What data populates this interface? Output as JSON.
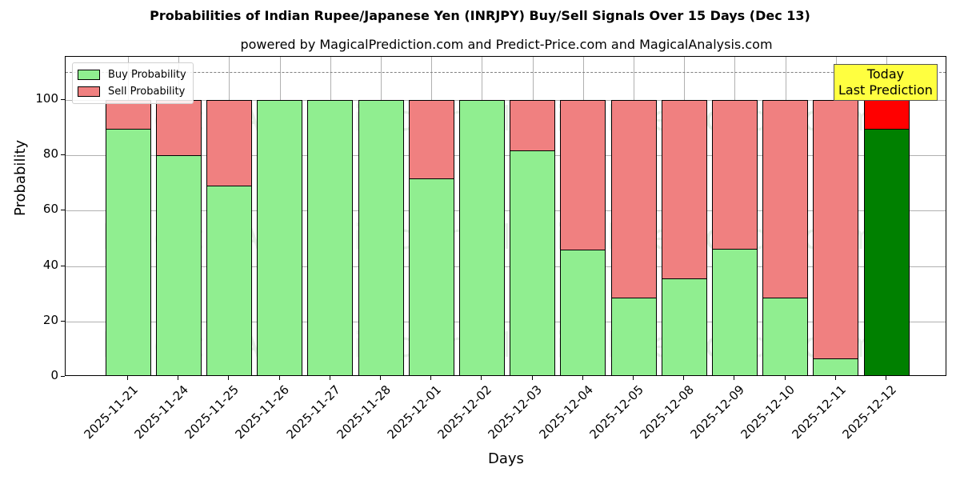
{
  "chart_data": {
    "type": "bar",
    "stacked": true,
    "title": "Probabilities of Indian Rupee/Japanese Yen (INRJPY) Buy/Sell Signals Over 15 Days (Dec 13)",
    "subtitle": "powered by MagicalPrediction.com and Predict-Price.com and MagicalAnalysis.com",
    "xlabel": "Days",
    "ylabel": "Probability",
    "ylim": [
      0,
      115
    ],
    "yticks": [
      0,
      20,
      40,
      60,
      80,
      100
    ],
    "grid": true,
    "reference_line": {
      "y": 110,
      "style": "dashed",
      "color": "#808080"
    },
    "legend": {
      "position": "upper left",
      "entries": [
        "Buy Probability",
        "Sell Probability"
      ]
    },
    "categories": [
      "2025-11-21",
      "2025-11-24",
      "2025-11-25",
      "2025-11-26",
      "2025-11-27",
      "2025-11-28",
      "2025-12-01",
      "2025-12-02",
      "2025-12-03",
      "2025-12-04",
      "2025-12-05",
      "2025-12-08",
      "2025-12-09",
      "2025-12-10",
      "2025-12-11",
      "2025-12-12"
    ],
    "series": [
      {
        "name": "Buy Probability",
        "color": "#90ee90",
        "values": [
          89.6,
          80.3,
          69.1,
          100,
          100,
          100,
          71.7,
          100,
          81.8,
          46.0,
          28.9,
          35.8,
          46.5,
          28.9,
          6.9,
          89.6
        ]
      },
      {
        "name": "Sell Probability",
        "color": "#f08080",
        "values": [
          10.4,
          19.7,
          30.9,
          0,
          0,
          0,
          28.3,
          0,
          18.2,
          54.0,
          71.1,
          64.2,
          53.5,
          71.1,
          93.1,
          10.4
        ]
      }
    ],
    "highlight": {
      "category": "2025-12-12",
      "buy_color": "#008000",
      "sell_color": "#ff0000",
      "annotation": "Today\nLast Prediction",
      "annotation_bg": "#ffff40"
    },
    "watermarks": [
      "MagicalAnalysis.com",
      "MagicalPrediction.com"
    ]
  },
  "labels": {
    "title": "Probabilities of Indian Rupee/Japanese Yen (INRJPY) Buy/Sell Signals Over 15 Days (Dec 13)",
    "subtitle": "powered by MagicalPrediction.com and Predict-Price.com and MagicalAnalysis.com",
    "xlabel": "Days",
    "ylabel": "Probability",
    "legend_buy": "Buy Probability",
    "legend_sell": "Sell Probability",
    "today_line1": "Today",
    "today_line2": "Last Prediction",
    "watermark_left": "MagicalAnalysis.com",
    "watermark_right": "MagicalPrediction.com"
  }
}
